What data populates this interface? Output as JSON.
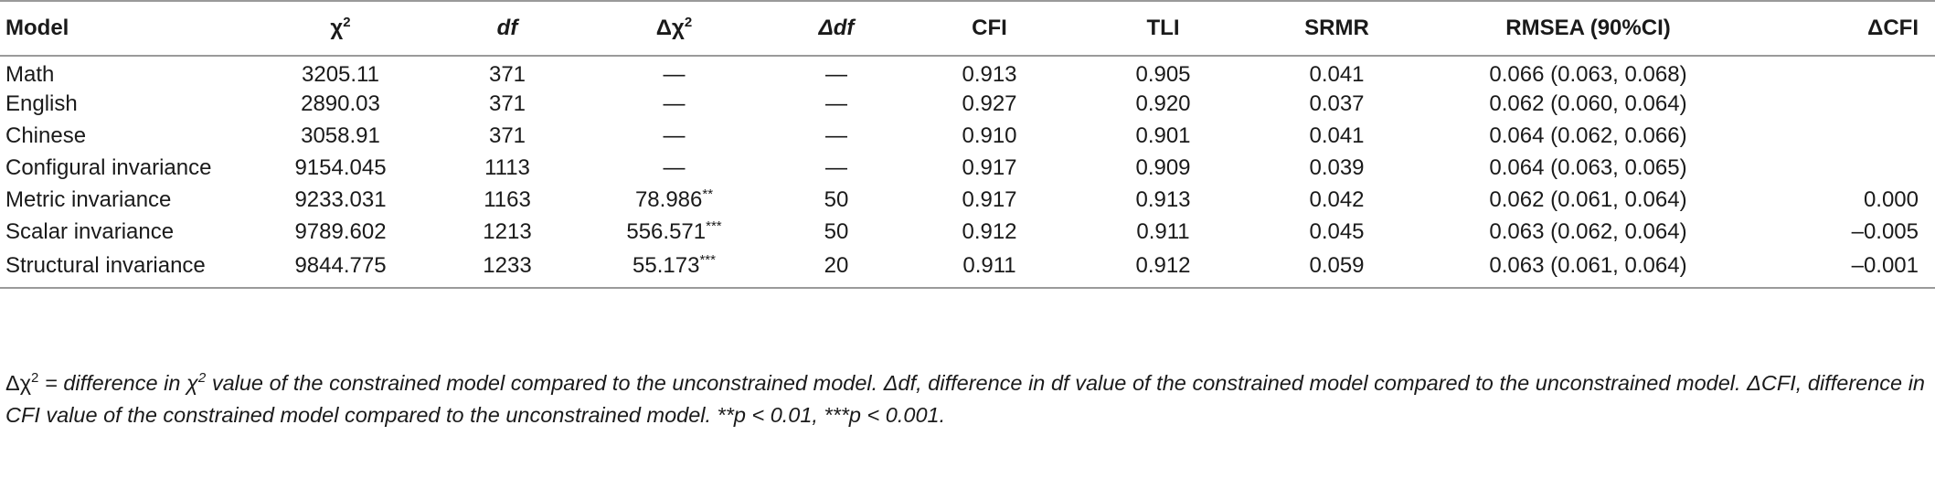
{
  "table": {
    "headers": [
      {
        "label": "Model"
      },
      {
        "label": "χ",
        "sup": "2"
      },
      {
        "label": "df"
      },
      {
        "label": "Δχ",
        "sup": "2"
      },
      {
        "label": "Δdf"
      },
      {
        "label": "CFI"
      },
      {
        "label": "TLI"
      },
      {
        "label": "SRMR"
      },
      {
        "label": "RMSEA (90%CI)"
      },
      {
        "label": "ΔCFI"
      }
    ],
    "rows": [
      {
        "model": "Math",
        "chi2": "3205.11",
        "df": "371",
        "dchi2": "—",
        "dchi2_sig": "",
        "ddf": "—",
        "cfi": "0.913",
        "tli": "0.905",
        "srmr": "0.041",
        "rmsea": "0.066 (0.063, 0.068)",
        "dcfi": ""
      },
      {
        "model": "English",
        "chi2": "2890.03",
        "df": "371",
        "dchi2": "—",
        "dchi2_sig": "",
        "ddf": "—",
        "cfi": "0.927",
        "tli": "0.920",
        "srmr": "0.037",
        "rmsea": "0.062 (0.060, 0.064)",
        "dcfi": ""
      },
      {
        "model": "Chinese",
        "chi2": "3058.91",
        "df": "371",
        "dchi2": "—",
        "dchi2_sig": "",
        "ddf": "—",
        "cfi": "0.910",
        "tli": "0.901",
        "srmr": "0.041",
        "rmsea": "0.064 (0.062, 0.066)",
        "dcfi": ""
      },
      {
        "model": "Configural invariance",
        "chi2": "9154.045",
        "df": "1113",
        "dchi2": "—",
        "dchi2_sig": "",
        "ddf": "—",
        "cfi": "0.917",
        "tli": "0.909",
        "srmr": "0.039",
        "rmsea": "0.064 (0.063, 0.065)",
        "dcfi": ""
      },
      {
        "model": "Metric invariance",
        "chi2": "9233.031",
        "df": "1163",
        "dchi2": "78.986",
        "dchi2_sig": "**",
        "ddf": "50",
        "cfi": "0.917",
        "tli": "0.913",
        "srmr": "0.042",
        "rmsea": "0.062 (0.061, 0.064)",
        "dcfi": "0.000"
      },
      {
        "model": "Scalar invariance",
        "chi2": "9789.602",
        "df": "1213",
        "dchi2": "556.571",
        "dchi2_sig": "***",
        "ddf": "50",
        "cfi": "0.912",
        "tli": "0.911",
        "srmr": "0.045",
        "rmsea": "0.063 (0.062, 0.064)",
        "dcfi": "–0.005"
      },
      {
        "model": "Structural invariance",
        "chi2": "9844.775",
        "df": "1233",
        "dchi2": "55.173",
        "dchi2_sig": "***",
        "ddf": "20",
        "cfi": "0.911",
        "tli": "0.912",
        "srmr": "0.059",
        "rmsea": "0.063 (0.061, 0.064)",
        "dcfi": "–0.001"
      }
    ]
  },
  "note": {
    "p1": "Δχ",
    "p1_sup": "2",
    "p2": " = difference in χ",
    "p2_sup": "2",
    "p3": " value of the constrained model compared to the unconstrained model. Δdf, difference in df value of the constrained model compared to the unconstrained model. ΔCFI, difference in CFI value of the constrained model compared to the unconstrained model. **p < 0.01, ***p < 0.001."
  }
}
